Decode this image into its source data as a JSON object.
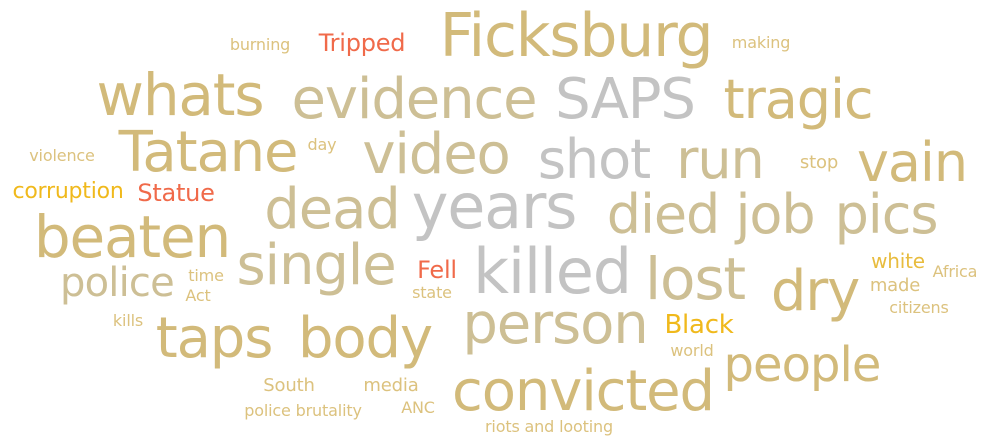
{
  "colors": {
    "tan": "#d2ba7a",
    "tan_dark": "#c8b06a",
    "khaki": "#cdbf95",
    "grey": "#c3c3c3",
    "gold": "#e8bc3e",
    "orange_gold": "#f0b91c",
    "red": "#f06a4a",
    "light_tan": "#dcc27e"
  },
  "words": [
    {
      "text": "Ficksburg",
      "color": "tan",
      "size": 60
    },
    {
      "text": "Tripped",
      "color": "red",
      "size": 24
    },
    {
      "text": "burning",
      "color": "light_tan",
      "size": 16
    },
    {
      "text": "making",
      "color": "light_tan",
      "size": 16
    },
    {
      "text": "whats",
      "color": "tan",
      "size": 58
    },
    {
      "text": "evidence",
      "color": "khaki",
      "size": 56
    },
    {
      "text": "SAPS",
      "color": "grey",
      "size": 56
    },
    {
      "text": "tragic",
      "color": "tan",
      "size": 54
    },
    {
      "text": "Tatane",
      "color": "tan",
      "size": 56
    },
    {
      "text": "day",
      "color": "light_tan",
      "size": 16
    },
    {
      "text": "video",
      "color": "khaki",
      "size": 56
    },
    {
      "text": "shot",
      "color": "grey",
      "size": 54
    },
    {
      "text": "run",
      "color": "khaki",
      "size": 54
    },
    {
      "text": "vain",
      "color": "tan",
      "size": 54
    },
    {
      "text": "violence",
      "color": "light_tan",
      "size": 16
    },
    {
      "text": "stop",
      "color": "light_tan",
      "size": 18
    },
    {
      "text": "corruption",
      "color": "orange_gold",
      "size": 22
    },
    {
      "text": "Statue",
      "color": "red",
      "size": 24
    },
    {
      "text": "dead",
      "color": "khaki",
      "size": 56
    },
    {
      "text": "years",
      "color": "grey",
      "size": 62
    },
    {
      "text": "died",
      "color": "khaki",
      "size": 54
    },
    {
      "text": "job",
      "color": "khaki",
      "size": 54
    },
    {
      "text": "pics",
      "color": "khaki",
      "size": 54
    },
    {
      "text": "beaten",
      "color": "tan",
      "size": 58
    },
    {
      "text": "single",
      "color": "khaki",
      "size": 56
    },
    {
      "text": "killed",
      "color": "grey",
      "size": 62
    },
    {
      "text": "lost",
      "color": "khaki",
      "size": 58
    },
    {
      "text": "dry",
      "color": "tan",
      "size": 56
    },
    {
      "text": "police",
      "color": "khaki",
      "size": 40
    },
    {
      "text": "time",
      "color": "light_tan",
      "size": 16
    },
    {
      "text": "Act",
      "color": "light_tan",
      "size": 16
    },
    {
      "text": "Fell",
      "color": "red",
      "size": 24
    },
    {
      "text": "state",
      "color": "light_tan",
      "size": 16
    },
    {
      "text": "white",
      "color": "gold",
      "size": 20
    },
    {
      "text": "Africa",
      "color": "light_tan",
      "size": 16
    },
    {
      "text": "made",
      "color": "light_tan",
      "size": 18
    },
    {
      "text": "citizens",
      "color": "light_tan",
      "size": 16
    },
    {
      "text": "kills",
      "color": "light_tan",
      "size": 16
    },
    {
      "text": "taps",
      "color": "tan",
      "size": 56
    },
    {
      "text": "body",
      "color": "tan",
      "size": 56
    },
    {
      "text": "person",
      "color": "khaki",
      "size": 56
    },
    {
      "text": "Black",
      "color": "orange_gold",
      "size": 26
    },
    {
      "text": "world",
      "color": "light_tan",
      "size": 16
    },
    {
      "text": "people",
      "color": "tan",
      "size": 48
    },
    {
      "text": "South",
      "color": "light_tan",
      "size": 18
    },
    {
      "text": "media",
      "color": "light_tan",
      "size": 18
    },
    {
      "text": "convicted",
      "color": "tan",
      "size": 56
    },
    {
      "text": "police brutality",
      "color": "light_tan",
      "size": 16
    },
    {
      "text": "ANC",
      "color": "light_tan",
      "size": 16
    },
    {
      "text": "riots and looting",
      "color": "light_tan",
      "size": 16
    }
  ]
}
